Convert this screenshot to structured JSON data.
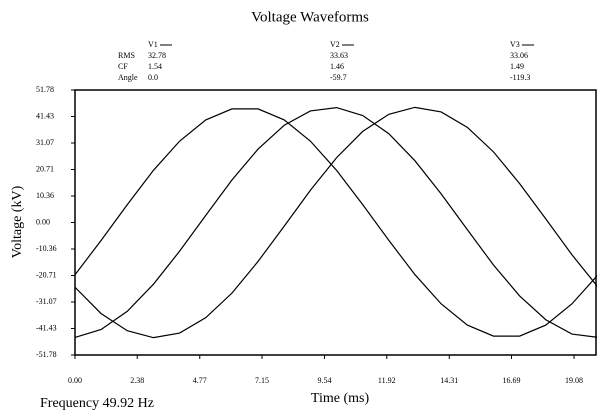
{
  "chart_data": {
    "type": "line",
    "title": "Voltage Waveforms",
    "xlabel": "Time (ms)",
    "ylabel": "Voltage (kV)",
    "annotation": "Frequency 49.92 Hz",
    "stat_labels": [
      "RMS",
      "CF",
      "Angle"
    ],
    "x": [
      0,
      1,
      2,
      3,
      4,
      5,
      6,
      7,
      8,
      9,
      10,
      11,
      12,
      13,
      14,
      15,
      16,
      17,
      18,
      19,
      20
    ],
    "series": [
      {
        "name": "V1",
        "color": "#000000",
        "stats": [
          "32.78",
          "1.54",
          "0.0"
        ],
        "values": [
          -20.4,
          -7.0,
          7.0,
          20.4,
          31.8,
          40.1,
          44.4,
          44.4,
          40.1,
          31.8,
          20.4,
          7.0,
          -7.0,
          -20.4,
          -31.8,
          -40.1,
          -44.4,
          -44.4,
          -40.1,
          -31.8,
          -20.4
        ]
      },
      {
        "name": "V2",
        "color": "#000000",
        "stats": [
          "33.63",
          "1.46",
          "-59.7"
        ],
        "values": [
          -44.9,
          -41.8,
          -34.7,
          -24.1,
          -11.2,
          2.8,
          16.6,
          28.7,
          38.0,
          43.6,
          44.9,
          41.8,
          34.7,
          24.1,
          11.2,
          -2.8,
          -16.6,
          -28.7,
          -38.0,
          -43.6,
          -44.9
        ]
      },
      {
        "name": "V3",
        "color": "#000000",
        "stats": [
          "33.06",
          "1.49",
          "-119.3"
        ],
        "values": [
          -25.3,
          -35.6,
          -42.3,
          -45.0,
          -43.2,
          -37.2,
          -27.6,
          -15.2,
          -1.4,
          12.6,
          25.3,
          35.6,
          42.3,
          45.0,
          43.2,
          37.2,
          27.6,
          15.2,
          1.4,
          -12.6,
          -25.3
        ]
      }
    ],
    "xlim": [
      0,
      19.92
    ],
    "xticks": [
      {
        "value": 0,
        "label": "0.00"
      },
      2.38,
      4.77,
      7.15,
      9.54,
      11.92,
      14.31,
      16.69,
      19.08
    ],
    "ylim": [
      -51.78,
      51.78
    ],
    "yticks": [
      51.78,
      41.43,
      31.07,
      20.71,
      10.36,
      {
        "value": 0,
        "label": "0.00"
      },
      -10.36,
      -20.71,
      -31.07,
      -41.43,
      -51.78
    ],
    "grid": false
  }
}
